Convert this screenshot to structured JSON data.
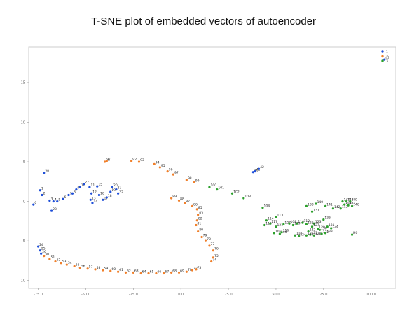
{
  "chart_data": {
    "type": "scatter",
    "title": "T-SNE plot of embedded vectors of autoencoder",
    "xlabel": "",
    "ylabel": "",
    "xlim": [
      -80,
      113
    ],
    "ylim": [
      -11,
      19.5
    ],
    "xticks": [
      -75,
      -50,
      -25,
      0,
      25,
      50,
      75,
      100
    ],
    "yticks": [
      -10,
      -5,
      0,
      5,
      10,
      15
    ],
    "grid": false,
    "legend": "top-right",
    "series": [
      {
        "name": "1",
        "color": "#1f4fd8",
        "points": [
          {
            "x": -77.5,
            "y": -0.4,
            "label": "0"
          },
          {
            "x": -74,
            "y": 1.4,
            "label": "1"
          },
          {
            "x": -73,
            "y": 0.8,
            "label": "2"
          },
          {
            "x": -69,
            "y": 0.1,
            "label": "3"
          },
          {
            "x": -67,
            "y": 0.0,
            "label": "4"
          },
          {
            "x": -65,
            "y": 0.0,
            "label": "5"
          },
          {
            "x": -62,
            "y": 0.3,
            "label": "6"
          },
          {
            "x": -59,
            "y": 0.8,
            "label": "7"
          },
          {
            "x": -57,
            "y": 1.0,
            "label": "8"
          },
          {
            "x": -55,
            "y": 1.5,
            "label": "9"
          },
          {
            "x": -53,
            "y": 1.8,
            "label": "10"
          },
          {
            "x": -51,
            "y": 2.2,
            "label": "27"
          },
          {
            "x": -48,
            "y": 1.8,
            "label": "11"
          },
          {
            "x": -47,
            "y": 1.0,
            "label": "12"
          },
          {
            "x": -47.5,
            "y": 0.2,
            "label": "13"
          },
          {
            "x": -46.5,
            "y": -0.2,
            "label": "14"
          },
          {
            "x": -44,
            "y": 1.9,
            "label": "15"
          },
          {
            "x": -43,
            "y": 0.8,
            "label": "16"
          },
          {
            "x": -41,
            "y": 0.2,
            "label": "17"
          },
          {
            "x": -39,
            "y": 0.5,
            "label": "18"
          },
          {
            "x": -37,
            "y": 1.2,
            "label": "19"
          },
          {
            "x": -36,
            "y": 1.8,
            "label": "20"
          },
          {
            "x": -34,
            "y": 1.5,
            "label": "21"
          },
          {
            "x": -33,
            "y": 1.0,
            "label": "22"
          },
          {
            "x": -68,
            "y": -1.2,
            "label": "23"
          },
          {
            "x": -75,
            "y": -5.7,
            "label": "24"
          },
          {
            "x": -74,
            "y": -6.2,
            "label": "25"
          },
          {
            "x": -73.5,
            "y": -6.6,
            "label": "26"
          },
          {
            "x": -72,
            "y": 3.6,
            "label": "28"
          },
          {
            "x": 38,
            "y": 3.7,
            "label": "40"
          },
          {
            "x": 39,
            "y": 3.8,
            "label": "41"
          },
          {
            "x": 41,
            "y": 4.1,
            "label": "42"
          },
          {
            "x": 107,
            "y": 17.9,
            "label": "43"
          }
        ]
      },
      {
        "name": "2",
        "color": "#f07f2a",
        "points": [
          {
            "x": -72,
            "y": -6.9,
            "label": "50"
          },
          {
            "x": -69,
            "y": -7.3,
            "label": "51"
          },
          {
            "x": -66,
            "y": -7.6,
            "label": "52"
          },
          {
            "x": -63,
            "y": -7.8,
            "label": "53"
          },
          {
            "x": -60,
            "y": -8.0,
            "label": "54"
          },
          {
            "x": -56,
            "y": -8.2,
            "label": "55"
          },
          {
            "x": -53,
            "y": -8.4,
            "label": "56"
          },
          {
            "x": -49,
            "y": -8.5,
            "label": "57"
          },
          {
            "x": -45,
            "y": -8.6,
            "label": "58"
          },
          {
            "x": -41,
            "y": -8.7,
            "label": "59"
          },
          {
            "x": -37,
            "y": -8.8,
            "label": "60"
          },
          {
            "x": -33,
            "y": -8.9,
            "label": "61"
          },
          {
            "x": -29,
            "y": -9.0,
            "label": "62"
          },
          {
            "x": -25,
            "y": -9.0,
            "label": "63"
          },
          {
            "x": -21,
            "y": -9.1,
            "label": "64"
          },
          {
            "x": -17,
            "y": -9.1,
            "label": "65"
          },
          {
            "x": -13,
            "y": -9.1,
            "label": "66"
          },
          {
            "x": -9,
            "y": -9.1,
            "label": "67"
          },
          {
            "x": -5,
            "y": -9.0,
            "label": "68"
          },
          {
            "x": -1,
            "y": -9.0,
            "label": "69"
          },
          {
            "x": 3,
            "y": -8.9,
            "label": "70"
          },
          {
            "x": 6,
            "y": -8.7,
            "label": "72"
          },
          {
            "x": 8,
            "y": -8.6,
            "label": "73"
          },
          {
            "x": 16,
            "y": -7.6,
            "label": "74"
          },
          {
            "x": 17,
            "y": -7.1,
            "label": "75"
          },
          {
            "x": 17,
            "y": -6.2,
            "label": "76"
          },
          {
            "x": 15,
            "y": -5.6,
            "label": "77"
          },
          {
            "x": 13,
            "y": -5.0,
            "label": "78"
          },
          {
            "x": 11,
            "y": -4.5,
            "label": "79"
          },
          {
            "x": 9,
            "y": -3.8,
            "label": "80"
          },
          {
            "x": 8,
            "y": -3.0,
            "label": "81"
          },
          {
            "x": 8.5,
            "y": -2.4,
            "label": "82"
          },
          {
            "x": 9,
            "y": -1.7,
            "label": "83"
          },
          {
            "x": 8.5,
            "y": -1.0,
            "label": "85"
          },
          {
            "x": 6,
            "y": -0.6,
            "label": "86"
          },
          {
            "x": 2,
            "y": -0.2,
            "label": "87"
          },
          {
            "x": -1,
            "y": 0.1,
            "label": "88"
          },
          {
            "x": -5,
            "y": 0.4,
            "label": "89"
          },
          {
            "x": -40,
            "y": 5.0,
            "label": "90"
          },
          {
            "x": -39,
            "y": 5.1,
            "label": "91"
          },
          {
            "x": -26,
            "y": 5.1,
            "label": "92"
          },
          {
            "x": -22,
            "y": 5.0,
            "label": "93"
          },
          {
            "x": -14,
            "y": 4.7,
            "label": "94"
          },
          {
            "x": -11,
            "y": 4.3,
            "label": "95"
          },
          {
            "x": -7,
            "y": 3.8,
            "label": "96"
          },
          {
            "x": -4,
            "y": 3.4,
            "label": "97"
          },
          {
            "x": 3,
            "y": 2.7,
            "label": "98"
          },
          {
            "x": 7,
            "y": 2.4,
            "label": "99"
          }
        ]
      },
      {
        "name": "3",
        "color": "#2ca02c",
        "points": [
          {
            "x": 15,
            "y": 1.8,
            "label": "100"
          },
          {
            "x": 19,
            "y": 1.5,
            "label": "101"
          },
          {
            "x": 27,
            "y": 1.0,
            "label": "102"
          },
          {
            "x": 33,
            "y": 0.4,
            "label": "103"
          },
          {
            "x": 43,
            "y": -0.8,
            "label": "104"
          },
          {
            "x": 49,
            "y": -4.0,
            "label": "105"
          },
          {
            "x": 52,
            "y": -4.1,
            "label": "106"
          },
          {
            "x": 54,
            "y": -2.9,
            "label": "107"
          },
          {
            "x": 57,
            "y": -2.8,
            "label": "108"
          },
          {
            "x": 59,
            "y": -3.0,
            "label": "109"
          },
          {
            "x": 61,
            "y": -2.8,
            "label": "110"
          },
          {
            "x": 50,
            "y": -2.0,
            "label": "113"
          },
          {
            "x": 45,
            "y": -2.4,
            "label": "114"
          },
          {
            "x": 44,
            "y": -3.0,
            "label": "115"
          },
          {
            "x": 53,
            "y": -3.9,
            "label": "116"
          },
          {
            "x": 47,
            "y": -2.8,
            "label": "117"
          },
          {
            "x": 60,
            "y": -4.3,
            "label": "118"
          },
          {
            "x": 64,
            "y": -2.7,
            "label": "119"
          },
          {
            "x": 50,
            "y": -3.2,
            "label": "121"
          },
          {
            "x": 67,
            "y": -3.8,
            "label": "122"
          },
          {
            "x": 70,
            "y": -2.8,
            "label": "123"
          },
          {
            "x": 62,
            "y": -4.4,
            "label": "124"
          },
          {
            "x": 68,
            "y": -4.2,
            "label": "125"
          },
          {
            "x": 66,
            "y": -2.9,
            "label": "126"
          },
          {
            "x": 69,
            "y": -3.2,
            "label": "127"
          },
          {
            "x": 70,
            "y": -4.3,
            "label": "128"
          },
          {
            "x": 72,
            "y": -3.5,
            "label": "129"
          },
          {
            "x": 73,
            "y": -3.6,
            "label": "130"
          },
          {
            "x": 77,
            "y": -3.2,
            "label": "131"
          },
          {
            "x": 74,
            "y": -4.1,
            "label": "132"
          },
          {
            "x": 76,
            "y": -4.0,
            "label": "133"
          },
          {
            "x": 79,
            "y": -3.4,
            "label": "134"
          },
          {
            "x": 66,
            "y": -4.3,
            "label": "135"
          },
          {
            "x": 75,
            "y": -2.3,
            "label": "136"
          },
          {
            "x": 69,
            "y": -1.3,
            "label": "137"
          },
          {
            "x": 66,
            "y": -0.6,
            "label": "138"
          },
          {
            "x": 71,
            "y": -0.3,
            "label": "140"
          },
          {
            "x": 76,
            "y": -0.6,
            "label": "141"
          },
          {
            "x": 80,
            "y": -0.9,
            "label": "142"
          },
          {
            "x": 84,
            "y": -0.9,
            "label": "143"
          },
          {
            "x": 86,
            "y": -0.4,
            "label": "144"
          },
          {
            "x": 88,
            "y": -0.5,
            "label": "145"
          },
          {
            "x": 90,
            "y": -0.6,
            "label": "146"
          },
          {
            "x": 85,
            "y": 0.0,
            "label": "147"
          },
          {
            "x": 87,
            "y": 0.0,
            "label": "148"
          },
          {
            "x": 89,
            "y": 0.0,
            "label": "149"
          },
          {
            "x": 90,
            "y": -4.2,
            "label": "H0"
          }
        ]
      }
    ]
  }
}
